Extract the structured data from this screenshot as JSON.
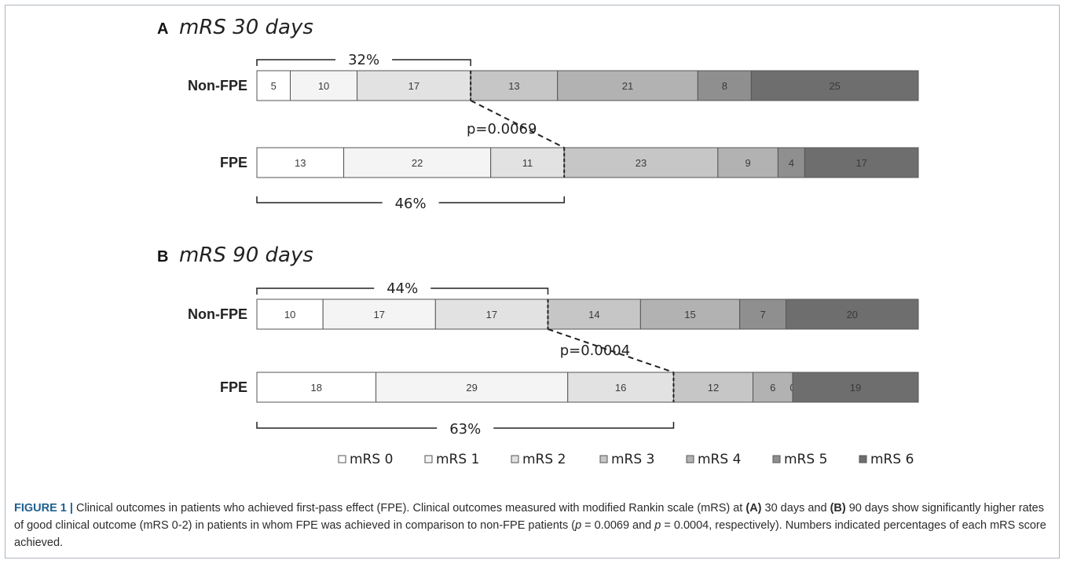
{
  "chart_data": {
    "type": "bar",
    "subtype": "stacked-horizontal-100",
    "legend": {
      "placement": "bottom",
      "items": [
        "mRS 0",
        "mRS 1",
        "mRS 2",
        "mRS 3",
        "mRS 4",
        "mRS 5",
        "mRS 6"
      ]
    },
    "colors": [
      "#ffffff",
      "#f4f4f4",
      "#e2e2e2",
      "#c6c6c6",
      "#b2b2b2",
      "#8f8f8f",
      "#6e6e6e"
    ],
    "panels": [
      {
        "letter": "A",
        "title": "mRS  30 days",
        "rows": [
          {
            "label": "Non-FPE",
            "values": [
              5,
              10,
              17,
              13,
              21,
              8,
              25
            ],
            "value_labels": [
              "5",
              "10",
              "17",
              "13",
              "21",
              "8",
              "25"
            ]
          },
          {
            "label": "FPE",
            "values": [
              13,
              22,
              11,
              23,
              9,
              4,
              17
            ],
            "value_labels": [
              "13",
              "22",
              "11",
              "23",
              "9",
              "4",
              "17"
            ]
          }
        ],
        "top_bracket": "32%",
        "bottom_bracket": "46%",
        "p_value": "p=0.0069"
      },
      {
        "letter": "B",
        "title": "mRS 90 days",
        "rows": [
          {
            "label": "Non-FPE",
            "values": [
              10,
              17,
              17,
              14,
              15,
              7,
              20
            ],
            "value_labels": [
              "10",
              "17",
              "17",
              "14",
              "15",
              "7",
              "20"
            ]
          },
          {
            "label": "FPE",
            "values": [
              18,
              29,
              16,
              12,
              6,
              0,
              19
            ],
            "value_labels": [
              "18",
              "29",
              "16",
              "12",
              "6",
              "0",
              "19"
            ]
          }
        ],
        "top_bracket": "44%",
        "bottom_bracket": "63%",
        "p_value": "p=0.0004"
      }
    ]
  },
  "caption": {
    "label": "FIGURE 1 |",
    "text1": " Clinical outcomes in patients who achieved first-pass effect (FPE). Clinical outcomes measured with modified Rankin scale (mRS) at ",
    "a_ref": "(A)",
    "text2": " 30 days and ",
    "b_ref": "(B)",
    "text3": " 90 days show significantly higher rates of good clinical outcome (mRS 0-2) in patients in whom FPE was achieved in comparison to non-FPE patients (",
    "p1": "p",
    "text4": " = 0.0069 and ",
    "p2": "p",
    "text5": " = 0.0004, respectively). Numbers indicated percentages of each mRS score achieved."
  }
}
